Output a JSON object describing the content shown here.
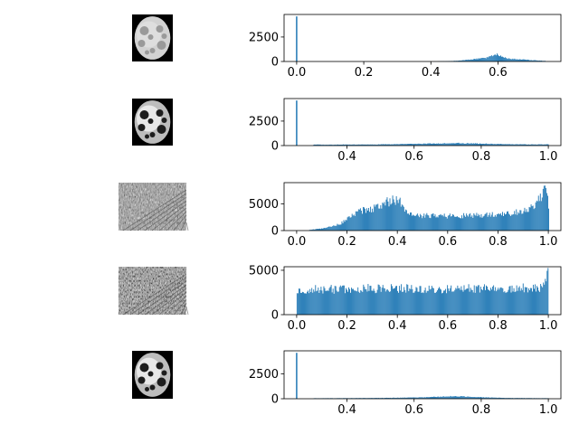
{
  "figure": {
    "background": "#ffffff",
    "bar_color": "#1f77b4",
    "axis_color": "#000000"
  },
  "chart_data": [
    {
      "type": "bar",
      "thumbnail": {
        "kind": "brain",
        "aspect": "square"
      },
      "xlim": [
        -0.0375,
        0.7875
      ],
      "ylim": [
        0,
        4800
      ],
      "xticks": [
        0.0,
        0.2,
        0.4,
        0.6
      ],
      "xtick_labels": [
        "0.0",
        "0.2",
        "0.4",
        "0.6"
      ],
      "yticks": [
        0,
        2500
      ],
      "ytick_labels": [
        "0",
        "2500"
      ],
      "spike": {
        "x": 0.0,
        "value": 4600
      },
      "series": [
        {
          "x": [
            0.42,
            0.45,
            0.48,
            0.5,
            0.52,
            0.54,
            0.56,
            0.57,
            0.58,
            0.59,
            0.6,
            0.61,
            0.62,
            0.63,
            0.64,
            0.66,
            0.68,
            0.7,
            0.72,
            0.74
          ],
          "values": [
            20,
            40,
            80,
            150,
            220,
            280,
            350,
            450,
            600,
            800,
            650,
            500,
            380,
            320,
            280,
            230,
            190,
            140,
            100,
            60
          ]
        }
      ]
    },
    {
      "type": "bar",
      "thumbnail": {
        "kind": "brain-contrast",
        "aspect": "square"
      },
      "xlim": [
        0.2125,
        1.0375
      ],
      "ylim": [
        0,
        4800
      ],
      "xticks": [
        0.4,
        0.6,
        0.8,
        1.0
      ],
      "xtick_labels": [
        "0.4",
        "0.6",
        "0.8",
        "1.0"
      ],
      "yticks": [
        0,
        2500
      ],
      "ytick_labels": [
        "0",
        "2500"
      ],
      "spike": {
        "x": 0.25,
        "value": 4600
      },
      "series": [
        {
          "x": [
            0.3,
            0.35,
            0.4,
            0.45,
            0.5,
            0.55,
            0.6,
            0.65,
            0.7,
            0.72,
            0.75,
            0.8,
            0.85,
            0.9,
            0.95,
            1.0
          ],
          "values": [
            100,
            90,
            110,
            100,
            120,
            150,
            170,
            200,
            230,
            260,
            230,
            200,
            160,
            130,
            110,
            130
          ]
        }
      ]
    },
    {
      "type": "bar",
      "thumbnail": {
        "kind": "texture",
        "aspect": "wide"
      },
      "xlim": [
        -0.05,
        1.05
      ],
      "ylim": [
        0,
        9000
      ],
      "xticks": [
        0.0,
        0.2,
        0.4,
        0.6,
        0.8,
        1.0
      ],
      "xtick_labels": [
        "0.0",
        "0.2",
        "0.4",
        "0.6",
        "0.8",
        "1.0"
      ],
      "yticks": [
        0,
        5000
      ],
      "ytick_labels": [
        "0",
        "5000"
      ],
      "series": [
        {
          "x": [
            0.05,
            0.1,
            0.15,
            0.18,
            0.2,
            0.22,
            0.25,
            0.28,
            0.3,
            0.33,
            0.36,
            0.38,
            0.4,
            0.41,
            0.43,
            0.45,
            0.5,
            0.6,
            0.7,
            0.75,
            0.8,
            0.85,
            0.9,
            0.93,
            0.95,
            0.97,
            0.98,
            0.99,
            1.0
          ],
          "values": [
            150,
            400,
            900,
            1500,
            2200,
            2900,
            3700,
            3900,
            4100,
            4700,
            5400,
            5700,
            5800,
            5300,
            3600,
            3000,
            2800,
            2750,
            2850,
            2900,
            3000,
            3200,
            3700,
            4200,
            5000,
            6500,
            8000,
            8700,
            4000
          ]
        }
      ]
    },
    {
      "type": "bar",
      "thumbnail": {
        "kind": "texture-eq",
        "aspect": "wide"
      },
      "xlim": [
        -0.05,
        1.05
      ],
      "ylim": [
        0,
        5400
      ],
      "xticks": [
        0.0,
        0.2,
        0.4,
        0.6,
        0.8,
        1.0
      ],
      "xtick_labels": [
        "0.0",
        "0.2",
        "0.4",
        "0.6",
        "0.8",
        "1.0"
      ],
      "yticks": [
        0,
        5000
      ],
      "ytick_labels": [
        "0",
        "5000"
      ],
      "series": [
        {
          "x": [
            0.0,
            0.1,
            0.2,
            0.3,
            0.4,
            0.5,
            0.6,
            0.7,
            0.8,
            0.85,
            0.88,
            0.9,
            0.92,
            0.94,
            0.96,
            0.98,
            0.99,
            1.0
          ],
          "values": [
            2800,
            2850,
            2900,
            2950,
            3000,
            2950,
            2900,
            2950,
            2950,
            3000,
            2850,
            3100,
            2700,
            3300,
            2500,
            3800,
            4200,
            5000
          ]
        }
      ]
    },
    {
      "type": "bar",
      "thumbnail": {
        "kind": "brain-contrast",
        "aspect": "square"
      },
      "xlim": [
        0.2125,
        1.0375
      ],
      "ylim": [
        0,
        4800
      ],
      "xticks": [
        0.4,
        0.6,
        0.8,
        1.0
      ],
      "xtick_labels": [
        "0.4",
        "0.6",
        "0.8",
        "1.0"
      ],
      "yticks": [
        0,
        2500
      ],
      "ytick_labels": [
        "0",
        "2500"
      ],
      "spike": {
        "x": 0.25,
        "value": 4600
      },
      "series": [
        {
          "x": [
            0.3,
            0.4,
            0.5,
            0.55,
            0.6,
            0.65,
            0.7,
            0.72,
            0.75,
            0.78,
            0.8,
            0.85,
            0.9,
            0.95,
            1.0
          ],
          "values": [
            50,
            60,
            80,
            100,
            130,
            180,
            230,
            260,
            220,
            170,
            140,
            100,
            70,
            60,
            50
          ]
        }
      ]
    }
  ]
}
